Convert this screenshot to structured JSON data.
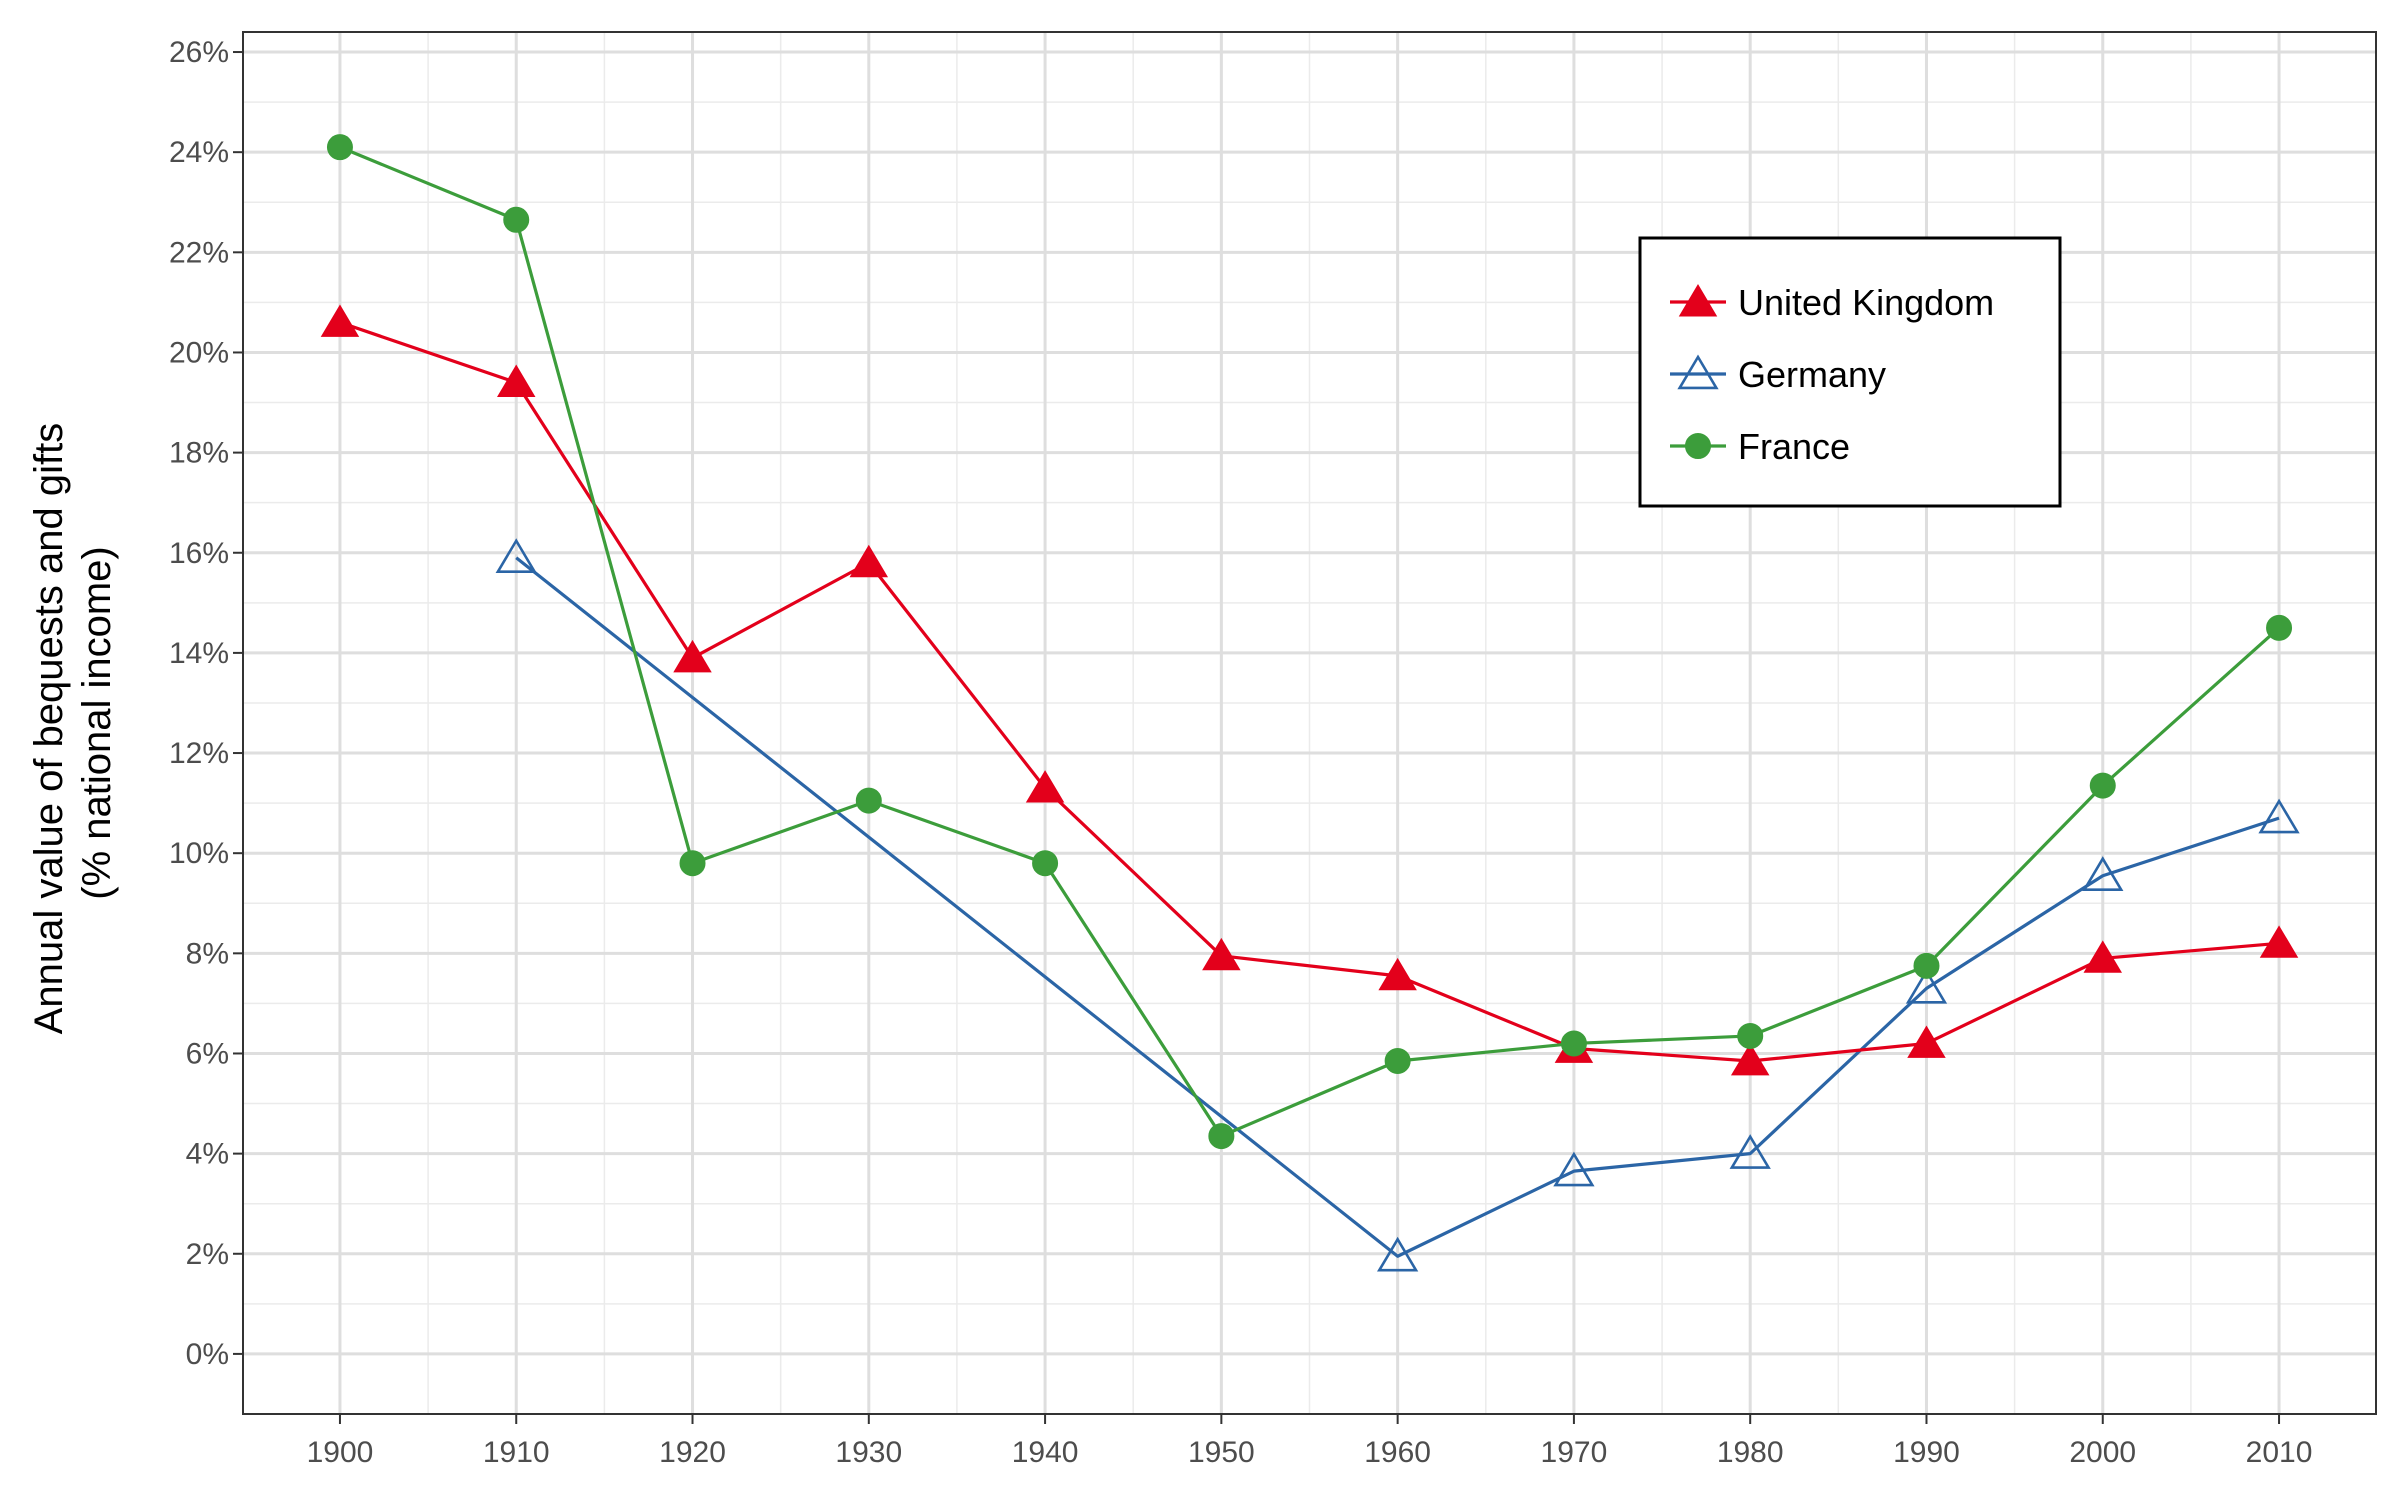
{
  "chart_data": {
    "type": "line",
    "title": "",
    "xlabel": "",
    "ylabel": [
      "Annual value of bequests and gifts",
      "(% national income)"
    ],
    "x": [
      1900,
      1910,
      1920,
      1930,
      1940,
      1950,
      1960,
      1970,
      1980,
      1990,
      2000,
      2010
    ],
    "xlim": [
      1894.5,
      2015.5
    ],
    "ylim": [
      -1.2,
      26.4
    ],
    "y_ticks": [
      0,
      2,
      4,
      6,
      8,
      10,
      12,
      14,
      16,
      18,
      20,
      22,
      24,
      26
    ],
    "y_tick_format": "{v}%",
    "grid": true,
    "legend_position": "top-right",
    "series": [
      {
        "name": "United Kingdom",
        "color": "#e3001b",
        "marker": "filled-triangle",
        "values": [
          20.6,
          19.4,
          13.9,
          15.8,
          11.3,
          7.95,
          7.55,
          6.1,
          5.85,
          6.2,
          7.9,
          8.2
        ]
      },
      {
        "name": "Germany",
        "color": "#2b65a6",
        "marker": "open-triangle",
        "values": [
          null,
          15.9,
          null,
          null,
          null,
          null,
          1.95,
          3.65,
          4.0,
          7.3,
          9.55,
          10.7
        ]
      },
      {
        "name": "France",
        "color": "#3c9d3b",
        "marker": "filled-circle",
        "values": [
          24.1,
          22.65,
          9.8,
          11.05,
          9.8,
          4.35,
          5.85,
          6.2,
          6.35,
          7.75,
          11.35,
          14.5
        ]
      }
    ]
  }
}
